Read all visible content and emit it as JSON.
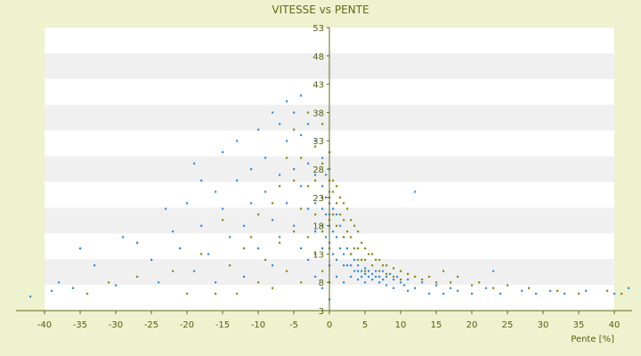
{
  "chart_data": {
    "type": "scatter",
    "title": "VITESSE vs PENTE",
    "xlabel": "Pente [%]",
    "ylabel": "",
    "xlim": [
      -40,
      40
    ],
    "ylim": [
      3,
      53
    ],
    "x_ticks": [
      -40,
      -35,
      -30,
      -25,
      -20,
      -15,
      -10,
      -5,
      0,
      5,
      10,
      15,
      20,
      25,
      30,
      35,
      40
    ],
    "y_ticks": [
      3,
      8,
      13,
      18,
      23,
      28,
      33,
      38,
      43,
      48,
      53
    ],
    "grid": "horizontal bands",
    "legend": "none",
    "colors": {
      "background": "#eef2cf",
      "band_light": "#ffffff",
      "band_dark": "#f0f0f0",
      "series_blue": "#2f8fe0",
      "series_olive": "#8c8a10",
      "axis": "#5f6b18"
    },
    "series": [
      {
        "color": "#2f8fe0",
        "points": [
          [
            -42,
            5.5
          ],
          [
            -39,
            6.5
          ],
          [
            -38,
            8
          ],
          [
            -36,
            7
          ],
          [
            -35,
            14
          ],
          [
            -33,
            11
          ],
          [
            -30,
            7.5
          ],
          [
            -29,
            16
          ],
          [
            -27,
            15
          ],
          [
            -25,
            12
          ],
          [
            -24,
            8
          ],
          [
            -23,
            21
          ],
          [
            -22,
            17
          ],
          [
            -21,
            14
          ],
          [
            -20,
            22
          ],
          [
            -19,
            29
          ],
          [
            -19,
            10
          ],
          [
            -18,
            26
          ],
          [
            -18,
            18
          ],
          [
            -17,
            13
          ],
          [
            -16,
            24
          ],
          [
            -16,
            8
          ],
          [
            -15,
            31
          ],
          [
            -15,
            21
          ],
          [
            -14,
            16
          ],
          [
            -13,
            33
          ],
          [
            -13,
            26
          ],
          [
            -12,
            18
          ],
          [
            -12,
            9
          ],
          [
            -11,
            28
          ],
          [
            -11,
            22
          ],
          [
            -10,
            35
          ],
          [
            -10,
            14
          ],
          [
            -9,
            30
          ],
          [
            -9,
            24
          ],
          [
            -8,
            38
          ],
          [
            -8,
            19
          ],
          [
            -8,
            11
          ],
          [
            -7,
            36
          ],
          [
            -7,
            27
          ],
          [
            -7,
            16
          ],
          [
            -6,
            40
          ],
          [
            -6,
            33
          ],
          [
            -6,
            22
          ],
          [
            -5,
            38
          ],
          [
            -5,
            28
          ],
          [
            -5,
            18
          ],
          [
            -4,
            41
          ],
          [
            -4,
            34
          ],
          [
            -4,
            25
          ],
          [
            -4,
            14
          ],
          [
            -3,
            36
          ],
          [
            -3,
            29
          ],
          [
            -3,
            21
          ],
          [
            -3,
            12
          ],
          [
            -2,
            33
          ],
          [
            -2,
            27
          ],
          [
            -2,
            22
          ],
          [
            -2,
            17
          ],
          [
            -2,
            9
          ],
          [
            -1,
            30
          ],
          [
            -1,
            25
          ],
          [
            -1,
            21
          ],
          [
            -1,
            18
          ],
          [
            -1,
            14
          ],
          [
            -1,
            7
          ],
          [
            -0.5,
            27
          ],
          [
            -0.5,
            23
          ],
          [
            -0.5,
            20
          ],
          [
            -0.5,
            16
          ],
          [
            0,
            28
          ],
          [
            0,
            24
          ],
          [
            0,
            22
          ],
          [
            0,
            20
          ],
          [
            0,
            18
          ],
          [
            0,
            15
          ],
          [
            0,
            11
          ],
          [
            0,
            5
          ],
          [
            0.5,
            21
          ],
          [
            0.5,
            17
          ],
          [
            0.5,
            13
          ],
          [
            1,
            20
          ],
          [
            1,
            16
          ],
          [
            1,
            12
          ],
          [
            1,
            9
          ],
          [
            1.5,
            18
          ],
          [
            1.5,
            14
          ],
          [
            2,
            16
          ],
          [
            2,
            13
          ],
          [
            2,
            11
          ],
          [
            2,
            8
          ],
          [
            2.5,
            14
          ],
          [
            2.5,
            11
          ],
          [
            3,
            13
          ],
          [
            3,
            11
          ],
          [
            3,
            9
          ],
          [
            3.5,
            12
          ],
          [
            3.5,
            10
          ],
          [
            4,
            11
          ],
          [
            4,
            10
          ],
          [
            4,
            8.5
          ],
          [
            4.5,
            10
          ],
          [
            4.5,
            9
          ],
          [
            5,
            10.5
          ],
          [
            5,
            9.5
          ],
          [
            5,
            8
          ],
          [
            5.5,
            10
          ],
          [
            5.5,
            9
          ],
          [
            6,
            9.5
          ],
          [
            6,
            8.5
          ],
          [
            6.5,
            10
          ],
          [
            6.5,
            9
          ],
          [
            7,
            9
          ],
          [
            7,
            8
          ],
          [
            7.5,
            10
          ],
          [
            7.5,
            8.5
          ],
          [
            8,
            9
          ],
          [
            8,
            7.5
          ],
          [
            8.5,
            9.5
          ],
          [
            9,
            8.5
          ],
          [
            9,
            7
          ],
          [
            9.5,
            9
          ],
          [
            10,
            8
          ],
          [
            10.5,
            7.5
          ],
          [
            11,
            8.5
          ],
          [
            11,
            6.5
          ],
          [
            12,
            24
          ],
          [
            12,
            7
          ],
          [
            13,
            8
          ],
          [
            14,
            6
          ],
          [
            15,
            7.5
          ],
          [
            16,
            6
          ],
          [
            17,
            7
          ],
          [
            18,
            6.5
          ],
          [
            20,
            6
          ],
          [
            22,
            7
          ],
          [
            23,
            10
          ],
          [
            24,
            6
          ],
          [
            27,
            6.5
          ],
          [
            29,
            6
          ],
          [
            31,
            6.5
          ],
          [
            33,
            6
          ],
          [
            36,
            6.5
          ],
          [
            40,
            6
          ],
          [
            42,
            7
          ]
        ]
      },
      {
        "color": "#8c8a10",
        "points": [
          [
            -34,
            6
          ],
          [
            -31,
            8
          ],
          [
            -27,
            9
          ],
          [
            -22,
            10
          ],
          [
            -20,
            6
          ],
          [
            -18,
            13
          ],
          [
            -16,
            6
          ],
          [
            -15,
            19
          ],
          [
            -14,
            11
          ],
          [
            -13,
            6
          ],
          [
            -12,
            14
          ],
          [
            -11,
            16
          ],
          [
            -10,
            8
          ],
          [
            -10,
            20
          ],
          [
            -9,
            12
          ],
          [
            -8,
            22
          ],
          [
            -8,
            7
          ],
          [
            -7,
            15
          ],
          [
            -7,
            25
          ],
          [
            -6,
            30
          ],
          [
            -6,
            10
          ],
          [
            -5,
            17
          ],
          [
            -5,
            26
          ],
          [
            -5,
            35
          ],
          [
            -4,
            21
          ],
          [
            -4,
            30
          ],
          [
            -4,
            8
          ],
          [
            -3,
            38
          ],
          [
            -3,
            25
          ],
          [
            -3,
            16
          ],
          [
            -2,
            32
          ],
          [
            -2,
            26
          ],
          [
            -2,
            20
          ],
          [
            -2,
            13
          ],
          [
            -1,
            36
          ],
          [
            -1,
            29
          ],
          [
            -1,
            23
          ],
          [
            -1,
            17
          ],
          [
            -1,
            10
          ],
          [
            0,
            31
          ],
          [
            0,
            26
          ],
          [
            0,
            23
          ],
          [
            0,
            19
          ],
          [
            0,
            14
          ],
          [
            0,
            8
          ],
          [
            0.5,
            26
          ],
          [
            0.5,
            24
          ],
          [
            0.5,
            20
          ],
          [
            1,
            25
          ],
          [
            1,
            22
          ],
          [
            1,
            18
          ],
          [
            1.5,
            23
          ],
          [
            1.5,
            20
          ],
          [
            2,
            22
          ],
          [
            2,
            19
          ],
          [
            2,
            16
          ],
          [
            2.5,
            21
          ],
          [
            2.5,
            17
          ],
          [
            3,
            19
          ],
          [
            3,
            16
          ],
          [
            3,
            13
          ],
          [
            3.5,
            18
          ],
          [
            3.5,
            14
          ],
          [
            4,
            17
          ],
          [
            4,
            14
          ],
          [
            4,
            12
          ],
          [
            4.5,
            15
          ],
          [
            4.5,
            12
          ],
          [
            5,
            14
          ],
          [
            5,
            12
          ],
          [
            5,
            10
          ],
          [
            5.5,
            13
          ],
          [
            6,
            13
          ],
          [
            6,
            11
          ],
          [
            6.5,
            12
          ],
          [
            7,
            12
          ],
          [
            7,
            10
          ],
          [
            7.5,
            11
          ],
          [
            8,
            11
          ],
          [
            8,
            9.5
          ],
          [
            9,
            10.5
          ],
          [
            9,
            9
          ],
          [
            10,
            10
          ],
          [
            10,
            8.5
          ],
          [
            11,
            9.5
          ],
          [
            12,
            9
          ],
          [
            13,
            8.5
          ],
          [
            14,
            9
          ],
          [
            15,
            8
          ],
          [
            16,
            10
          ],
          [
            17,
            8
          ],
          [
            18,
            9
          ],
          [
            20,
            7.5
          ],
          [
            21,
            8
          ],
          [
            23,
            7
          ],
          [
            25,
            7.5
          ],
          [
            28,
            7
          ],
          [
            32,
            6.5
          ],
          [
            35,
            6
          ],
          [
            39,
            6.5
          ],
          [
            41,
            6
          ]
        ]
      }
    ]
  }
}
